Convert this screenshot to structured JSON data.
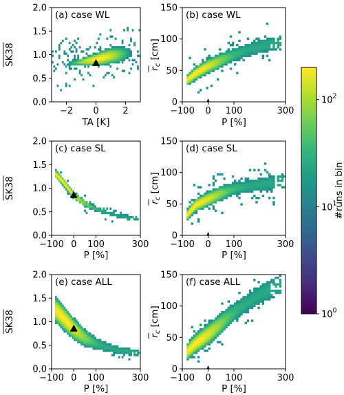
{
  "colorbar": {
    "label": "#runs in bin",
    "ticks": [
      "10",
      "10",
      "10"
    ],
    "exponents": [
      "0",
      "1",
      "2"
    ],
    "colors": [
      "#440154",
      "#482878",
      "#3e4989",
      "#31688e",
      "#26828e",
      "#1f9e89",
      "#35b779",
      "#6ece58",
      "#b5de2b",
      "#fde725"
    ]
  },
  "chart_data": [
    {
      "type": "heatmap",
      "id": "a",
      "panel_label": "(a) case WL",
      "xlabel": "TA [K]",
      "ylabel": "SK38",
      "xlim": [
        -3,
        3
      ],
      "ylim": [
        0,
        2
      ],
      "xticks": [
        -2,
        0,
        2
      ],
      "yticks": [
        0.0,
        0.5,
        1.0,
        1.5,
        2.0
      ],
      "xtick_labels": [
        "−2",
        "0",
        "2"
      ],
      "ytick_labels": [
        "0.0",
        "0.5",
        "1.0",
        "1.5",
        "2.0"
      ],
      "reference_marker": {
        "x": 0,
        "y": 0.82,
        "shape": "triangle"
      },
      "density": {
        "kind": "ta_sk",
        "curve": [
          [
            -3.0,
            0.8
          ],
          [
            -1.5,
            0.82
          ],
          [
            0.0,
            0.9
          ],
          [
            1.0,
            0.98
          ],
          [
            2.0,
            1.02
          ],
          [
            2.5,
            1.05
          ]
        ]
      }
    },
    {
      "type": "heatmap",
      "id": "b",
      "panel_label": "(b) case WL",
      "xlabel": "P [%]",
      "ylabel": "r_c [cm]",
      "xlim": [
        -100,
        300
      ],
      "ylim": [
        0,
        150
      ],
      "xticks": [
        -100,
        0,
        100,
        300
      ],
      "yticks": [
        0,
        50,
        100,
        150
      ],
      "xtick_labels": [
        "−100",
        "0",
        "100",
        "300"
      ],
      "ytick_labels": [
        "0",
        "50",
        "100",
        "150"
      ],
      "reference_marker": {
        "x": 0,
        "y": 0,
        "shape": "diamond"
      },
      "density": {
        "kind": "p_rc",
        "curve": [
          [
            -80,
            35
          ],
          [
            -50,
            45
          ],
          [
            0,
            57
          ],
          [
            50,
            66
          ],
          [
            100,
            75
          ],
          [
            150,
            82
          ],
          [
            200,
            88
          ],
          [
            280,
            95
          ]
        ]
      }
    },
    {
      "type": "heatmap",
      "id": "c",
      "panel_label": "(c) case SL",
      "xlabel": "P [%]",
      "ylabel": "SK38",
      "xlim": [
        -100,
        300
      ],
      "ylim": [
        0,
        2
      ],
      "xticks": [
        -100,
        0,
        100,
        300
      ],
      "yticks": [
        0.0,
        0.5,
        1.0,
        1.5,
        2.0
      ],
      "xtick_labels": [
        "−100",
        "0",
        "100",
        "300"
      ],
      "ytick_labels": [
        "0.0",
        "0.5",
        "1.0",
        "1.5",
        "2.0"
      ],
      "reference_marker": {
        "x": 0,
        "y": 0.85,
        "shape": "triangle"
      },
      "density": {
        "kind": "p_sk",
        "curve": [
          [
            -80,
            1.3
          ],
          [
            -50,
            1.15
          ],
          [
            0,
            0.85
          ],
          [
            50,
            0.68
          ],
          [
            100,
            0.56
          ],
          [
            150,
            0.48
          ],
          [
            200,
            0.42
          ],
          [
            300,
            0.35
          ]
        ]
      }
    },
    {
      "type": "heatmap",
      "id": "d",
      "panel_label": "(d) case SL",
      "xlabel": "P [%]",
      "ylabel": "r_c [cm]",
      "xlim": [
        -100,
        300
      ],
      "ylim": [
        0,
        150
      ],
      "xticks": [
        -100,
        0,
        100,
        300
      ],
      "yticks": [
        0,
        50,
        100,
        150
      ],
      "xtick_labels": [
        "−100",
        "0",
        "100",
        "300"
      ],
      "ytick_labels": [
        "0",
        "50",
        "100",
        "150"
      ],
      "reference_marker": {
        "x": 0,
        "y": 0,
        "shape": "diamond"
      },
      "density": {
        "kind": "p_rc",
        "curve": [
          [
            -80,
            33
          ],
          [
            -50,
            48
          ],
          [
            0,
            58
          ],
          [
            50,
            67
          ],
          [
            100,
            74
          ],
          [
            150,
            78
          ],
          [
            200,
            81
          ],
          [
            300,
            87
          ]
        ]
      }
    },
    {
      "type": "heatmap",
      "id": "e",
      "panel_label": "(e) case ALL",
      "xlabel": "P [%]",
      "ylabel": "SK38",
      "xlim": [
        -100,
        300
      ],
      "ylim": [
        0,
        2
      ],
      "xticks": [
        -100,
        0,
        100,
        300
      ],
      "yticks": [
        0.0,
        0.5,
        1.0,
        1.5,
        2.0
      ],
      "xtick_labels": [
        "−100",
        "0",
        "100",
        "300"
      ],
      "ytick_labels": [
        "0.0",
        "0.5",
        "1.0",
        "1.5",
        "2.0"
      ],
      "reference_marker": {
        "x": 0,
        "y": 0.85,
        "shape": "triangle"
      },
      "density": {
        "kind": "p_sk_wide",
        "curve": [
          [
            -80,
            1.25
          ],
          [
            -50,
            1.1
          ],
          [
            0,
            0.85
          ],
          [
            50,
            0.66
          ],
          [
            100,
            0.54
          ],
          [
            150,
            0.46
          ],
          [
            200,
            0.4
          ],
          [
            300,
            0.33
          ]
        ]
      }
    },
    {
      "type": "heatmap",
      "id": "f",
      "panel_label": "(f) case ALL",
      "xlabel": "P [%]",
      "ylabel": "r_c [cm]",
      "xlim": [
        -100,
        300
      ],
      "ylim": [
        0,
        150
      ],
      "xticks": [
        -100,
        0,
        100,
        300
      ],
      "yticks": [
        0,
        50,
        100,
        150
      ],
      "xtick_labels": [
        "−100",
        "0",
        "100",
        "300"
      ],
      "ytick_labels": [
        "0",
        "50",
        "100",
        "150"
      ],
      "reference_marker": {
        "x": 0,
        "y": 0,
        "shape": "diamond"
      },
      "density": {
        "kind": "p_rc_wide",
        "curve": [
          [
            -80,
            28
          ],
          [
            -50,
            40
          ],
          [
            0,
            55
          ],
          [
            50,
            72
          ],
          [
            100,
            90
          ],
          [
            150,
            105
          ],
          [
            200,
            118
          ],
          [
            280,
            135
          ]
        ]
      }
    }
  ]
}
